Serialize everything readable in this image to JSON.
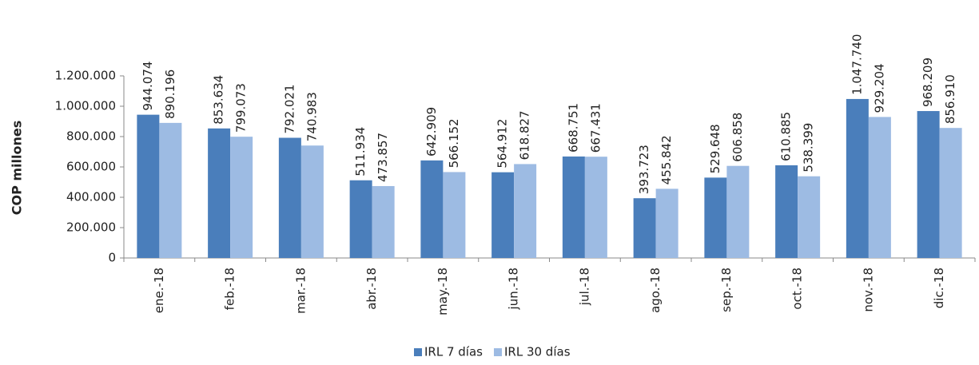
{
  "chart_data": {
    "type": "bar",
    "y_label": "COP millones",
    "categories": [
      "ene.-18",
      "feb.-18",
      "mar.-18",
      "abr.-18",
      "may.-18",
      "jun.-18",
      "jul.-18",
      "ago.-18",
      "sep.-18",
      "oct.-18",
      "nov.-18",
      "dic.-18"
    ],
    "series": [
      {
        "name": "IRL 7 días",
        "color": "#4a7ebb",
        "values": [
          944074,
          853634,
          792021,
          511934,
          642909,
          564912,
          668751,
          393723,
          529648,
          610885,
          1047740,
          968209
        ],
        "value_labels": [
          "944.074",
          "853.634",
          "792.021",
          "511.934",
          "642.909",
          "564.912",
          "668.751",
          "393.723",
          "529.648",
          "610.885",
          "1.047.740",
          "968.209"
        ]
      },
      {
        "name": "IRL 30 días",
        "color": "#9dbbe3",
        "values": [
          890196,
          799073,
          740983,
          473857,
          566152,
          618827,
          667431,
          455842,
          606858,
          538399,
          929204,
          856910
        ],
        "value_labels": [
          "890.196",
          "799.073",
          "740.983",
          "473.857",
          "566.152",
          "618.827",
          "667.431",
          "455.842",
          "606.858",
          "538.399",
          "929.204",
          "856.910"
        ]
      }
    ],
    "ylim": [
      0,
      1200000
    ],
    "yticks": [
      0,
      {
        "value": 200000,
        "label": "200.000"
      },
      {
        "value": 400000,
        "label": "400.000"
      },
      {
        "value": 600000,
        "label": "600.000"
      },
      {
        "value": 800000,
        "label": "800.000"
      },
      {
        "value": 1000000,
        "label": "1.000.000"
      },
      {
        "value": 1200000,
        "label": "1.200.000"
      }
    ],
    "grid": false,
    "legend": "bottom"
  }
}
